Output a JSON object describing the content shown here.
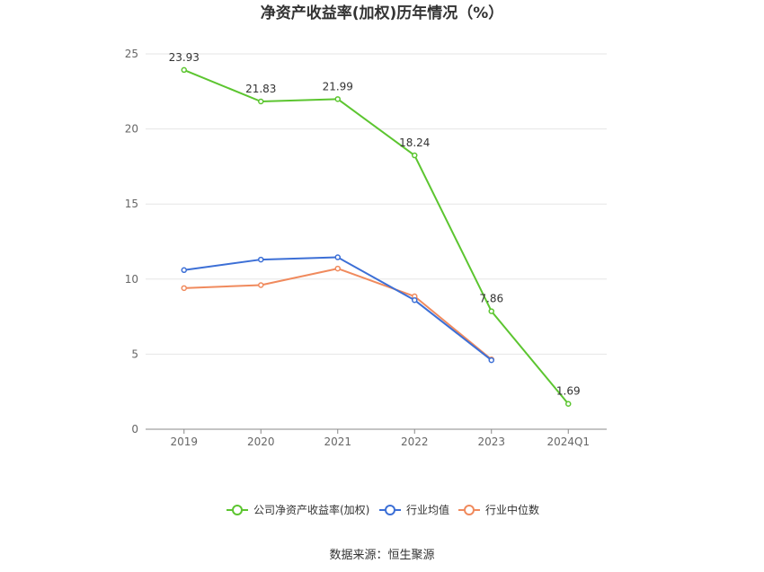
{
  "chart_data": {
    "type": "line",
    "title": "净资产收益率(加权)历年情况（%）",
    "categories": [
      "2019",
      "2020",
      "2021",
      "2022",
      "2023",
      "2024Q1"
    ],
    "ylim": [
      0,
      25
    ],
    "yticks": [
      0,
      5,
      10,
      15,
      20,
      25
    ],
    "grid": true,
    "legend_position": "bottom-center",
    "series": [
      {
        "name": "公司净资产收益率(加权)",
        "color": "#5cc530",
        "values": [
          23.93,
          21.83,
          21.99,
          18.24,
          7.86,
          1.69
        ],
        "data_labels": [
          "23.93",
          "21.83",
          "21.99",
          "18.24",
          "7.86",
          "1.69"
        ]
      },
      {
        "name": "行业均值",
        "color": "#3c6fd6",
        "values": [
          10.6,
          11.3,
          11.45,
          8.6,
          4.6,
          null
        ]
      },
      {
        "name": "行业中位数",
        "color": "#f08a5d",
        "values": [
          9.4,
          9.6,
          10.7,
          8.85,
          4.65,
          null
        ]
      }
    ],
    "source": "数据来源：恒生聚源"
  }
}
